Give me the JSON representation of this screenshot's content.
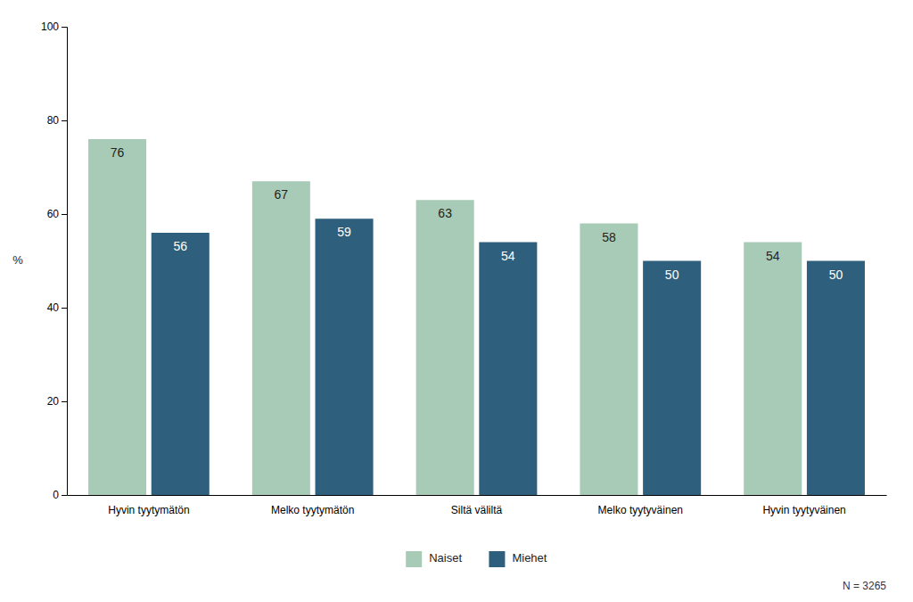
{
  "chart_data": {
    "type": "bar",
    "ylabel": "%",
    "categories": [
      "Hyvin tyytymätön",
      "Melko tyytymätön",
      "Siltä väliltä",
      "Melko tyytyväinen",
      "Hyvin tyytyväinen"
    ],
    "series": [
      {
        "name": "Naiset",
        "color": "#a8cbb8",
        "values": [
          76,
          67,
          63,
          58,
          54
        ]
      },
      {
        "name": "Miehet",
        "color": "#2e5f7d",
        "values": [
          56,
          59,
          54,
          50,
          50
        ]
      }
    ],
    "ylim": [
      0,
      100
    ],
    "yticks": [
      0,
      20,
      40,
      60,
      80,
      100
    ],
    "grid": false,
    "legend": "bottom",
    "data_labels": true,
    "annotations": [
      "N = 3265"
    ]
  }
}
